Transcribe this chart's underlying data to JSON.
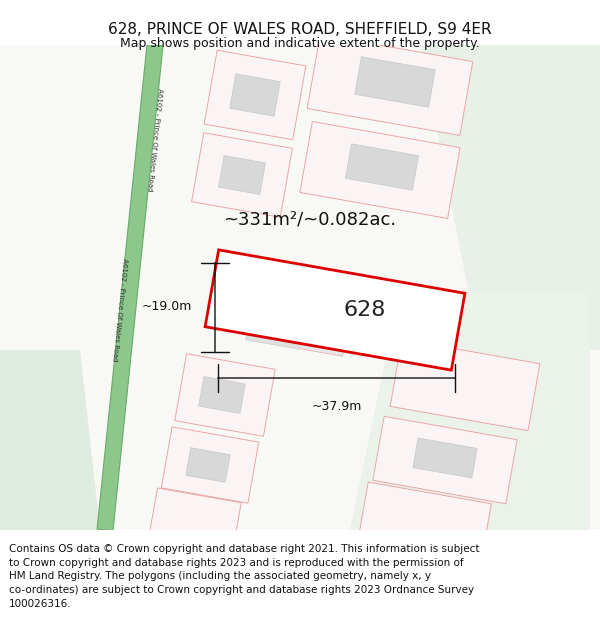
{
  "title_line1": "628, PRINCE OF WALES ROAD, SHEFFIELD, S9 4ER",
  "title_line2": "Map shows position and indicative extent of the property.",
  "area_text": "~331m²/~0.082ac.",
  "dim_width": "~37.9m",
  "dim_height": "~19.0m",
  "label_628": "628",
  "road_label": "A6102 - Prince Of Wales Road",
  "map_bg": "#f8f8f5",
  "road_fill": "#8cc88c",
  "road_stroke": "#6aaa6a",
  "plot_stroke": "#dd0000",
  "property_stroke": "#e8a8a8",
  "property_fill": "#faf4f4",
  "building_fill": "#d8d8d8",
  "building_stroke": "#c8c8c8",
  "green_area_right": "#e8f0e8",
  "green_area_left": "#e0ece0",
  "title_fontsize": 11,
  "subtitle_fontsize": 9,
  "copyright_fontsize": 7.5,
  "copyright_lines": [
    "Contains OS data © Crown copyright and database right 2021. This information is subject",
    "to Crown copyright and database rights 2023 and is reproduced with the permission of",
    "HM Land Registry. The polygons (including the associated geometry, namely x, y",
    "co-ordinates) are subject to Crown copyright and database rights 2023 Ordnance Survey",
    "100026316."
  ]
}
